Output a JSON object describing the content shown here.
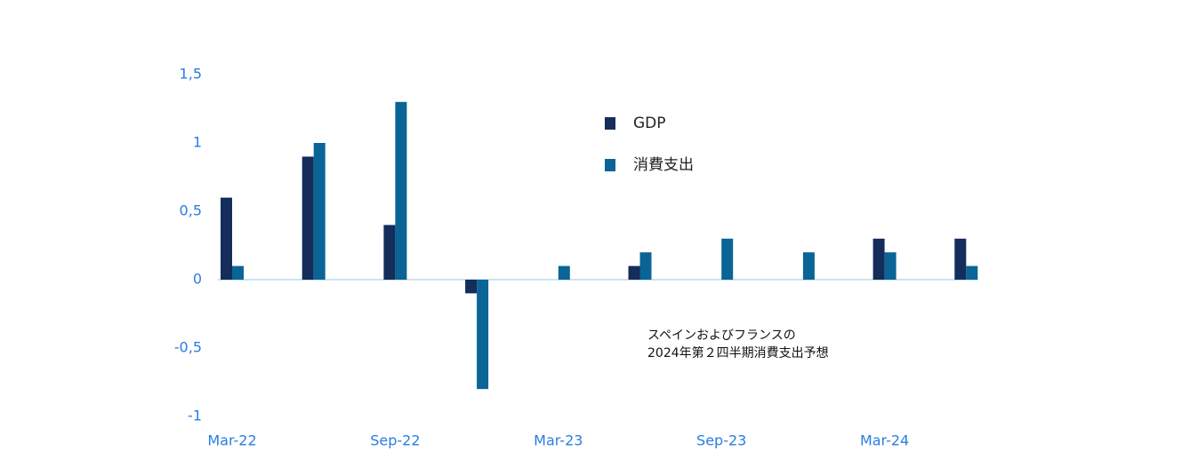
{
  "chart_data": {
    "type": "bar",
    "categories": [
      "Mar-22",
      null,
      "Sep-22",
      null,
      "Mar-23",
      null,
      "Sep-23",
      null,
      "Mar-24",
      null
    ],
    "series": [
      {
        "name": "GDP",
        "color": "#142d5a",
        "values": [
          0.6,
          0.9,
          0.4,
          -0.1,
          0,
          0.1,
          0,
          0,
          0.3,
          0.3
        ]
      },
      {
        "name": "消費支出",
        "color": "#0a6496",
        "values": [
          0.1,
          1.0,
          1.3,
          -0.8,
          0.1,
          0.2,
          0.3,
          0.2,
          0.2,
          0.1
        ]
      }
    ],
    "ylim": [
      -1,
      1.5
    ],
    "yticks": [
      {
        "value": 1.5,
        "label": "1,5"
      },
      1,
      {
        "value": 0.5,
        "label": "0,5"
      },
      0,
      {
        "value": -0.5,
        "label": "-0,5"
      },
      -1
    ],
    "annotation": [
      "スペインおよびフランスの",
      "2024年第２四半期消費支出予想"
    ]
  }
}
